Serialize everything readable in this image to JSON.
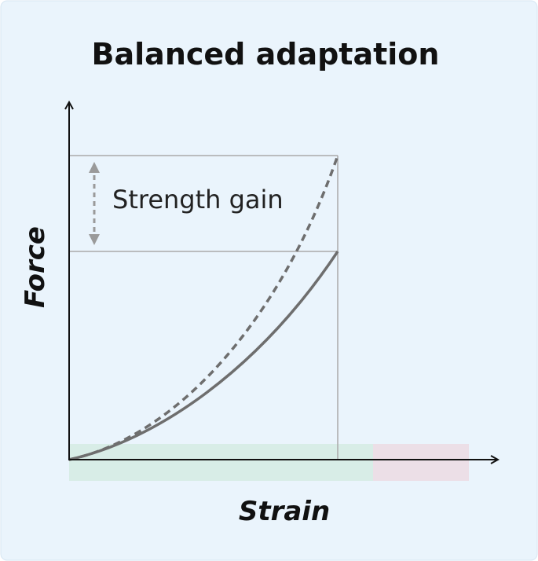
{
  "title": "Balanced adaptation",
  "annotation": "Strength gain",
  "y_axis_label": "Force",
  "x_axis_label": "Strain"
}
